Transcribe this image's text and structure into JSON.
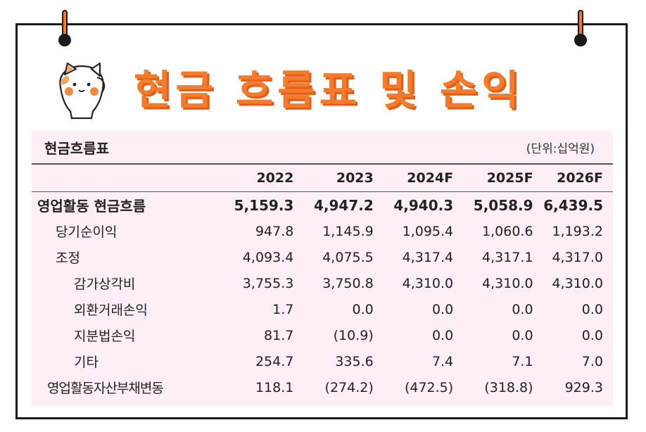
{
  "title": "현금 흐름표 및 손익",
  "panel": {
    "title": "현금흐름표",
    "unit": "(단위:십억원)"
  },
  "table": {
    "headers": [
      "2022",
      "2023",
      "2024F",
      "2025F",
      "2026F"
    ],
    "rows": [
      {
        "label": "영업활동 현금흐름",
        "values": [
          "5,159.3",
          "4,947.2",
          "4,940.3",
          "5,058.9",
          "6,439.5"
        ]
      },
      {
        "label": "당기순이익",
        "values": [
          "947.8",
          "1,145.9",
          "1,095.4",
          "1,060.6",
          "1,193.2"
        ]
      },
      {
        "label": "조정",
        "values": [
          "4,093.4",
          "4,075.5",
          "4,317.4",
          "4,317.1",
          "4,317.0"
        ]
      },
      {
        "label": "감가상각비",
        "values": [
          "3,755.3",
          "3,750.8",
          "4,310.0",
          "4,310.0",
          "4,310.0"
        ]
      },
      {
        "label": "외환거래손익",
        "values": [
          "1.7",
          "0.0",
          "0.0",
          "0.0",
          "0.0"
        ]
      },
      {
        "label": "지분법손익",
        "values": [
          "81.7",
          "(10.9)",
          "0.0",
          "0.0",
          "0.0"
        ]
      },
      {
        "label": "기타",
        "values": [
          "254.7",
          "335.6",
          "7.4",
          "7.1",
          "7.0"
        ]
      },
      {
        "label": "영업활동자산부채변동",
        "values": [
          "118.1",
          "(274.2)",
          "(472.5)",
          "(318.8)",
          "929.3"
        ]
      }
    ]
  },
  "icons": {
    "pins": "pushpin-icon",
    "mascot": "cat-mascot-icon"
  },
  "colors": {
    "accent": "#f47a2c",
    "panel_bg": "#fdeef8"
  }
}
